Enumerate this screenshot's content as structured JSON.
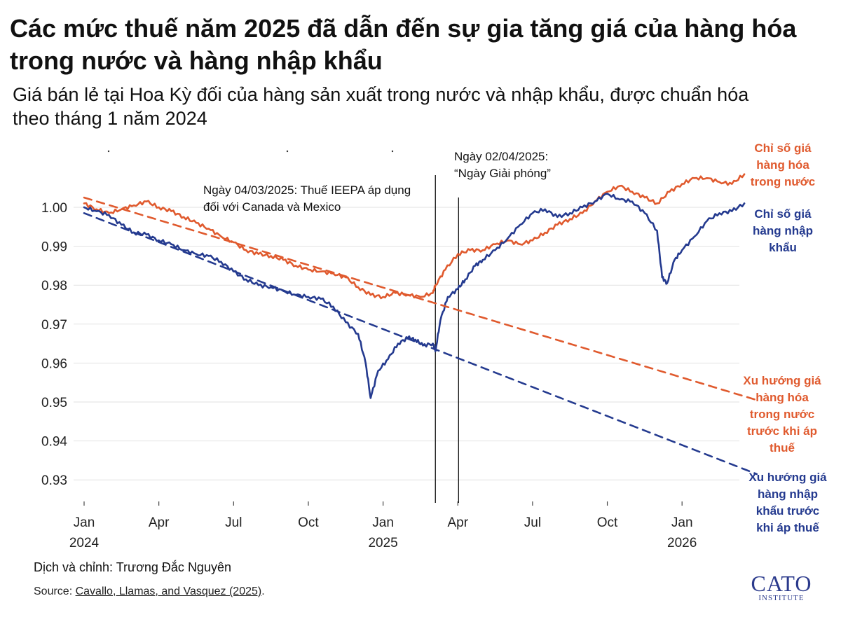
{
  "title": "Các mức thuế năm 2025 đã dẫn đến sự gia tăng giá của hàng hóa trong nước và hàng nhập khẩu",
  "subtitle": "Giá bán lẻ tại Hoa Kỳ đối của hàng sản xuất trong nước và nhập khẩu, được chuẩn hóa theo tháng 1 năm 2024",
  "credit": "Dịch và chỉnh: Trương Đắc Nguyên",
  "source_prefix": "Source: ",
  "source_link": "Cavallo, Llamas, and Vasquez (2025)",
  "source_suffix": ".",
  "logo": {
    "main": "CATO",
    "sub": "INSTITUTE"
  },
  "colors": {
    "domestic": "#e05a2e",
    "imported": "#243a8f"
  },
  "chart_data": {
    "type": "line",
    "title": "",
    "xlabel": "",
    "ylabel": "",
    "ylim": [
      0.925,
      1.005
    ],
    "xlim": [
      "2024-01",
      "2026-03"
    ],
    "grid": "horizontal",
    "y_ticks": [
      "1.00",
      "0.99",
      "0.98",
      "0.97",
      "0.96",
      "0.95",
      "0.94",
      "0.93"
    ],
    "x_ticks": [
      {
        "m": 0,
        "label": "Jan",
        "year": "2024"
      },
      {
        "m": 3,
        "label": "Apr",
        "year": ""
      },
      {
        "m": 6,
        "label": "Jul",
        "year": ""
      },
      {
        "m": 9,
        "label": "Oct",
        "year": ""
      },
      {
        "m": 12,
        "label": "Jan",
        "year": "2025"
      },
      {
        "m": 15,
        "label": "Apr",
        "year": ""
      },
      {
        "m": 18,
        "label": "Jul",
        "year": ""
      },
      {
        "m": 21,
        "label": "Oct",
        "year": ""
      },
      {
        "m": 24,
        "label": "Jan",
        "year": "2026"
      }
    ],
    "vlines": [
      {
        "date": "2025-03-04",
        "m": 14.1,
        "label": "Ngày 04/03/2025: Thuế IEEPA áp dụng đối với Canada và Mexico"
      },
      {
        "date": "2025-04-02",
        "m": 15.03,
        "label_line1": "Ngày 02/04/2025:",
        "label_line2": "“Ngày Giải phóng”"
      }
    ],
    "series": [
      {
        "name": "Chỉ số giá hàng hóa trong nước",
        "color": "#e05a2e",
        "style": "solid",
        "points": [
          [
            0,
            1.001
          ],
          [
            0.5,
            0.9995
          ],
          [
            1,
            0.9985
          ],
          [
            1.5,
            0.9995
          ],
          [
            2,
            1.0005
          ],
          [
            2.5,
            1.0015
          ],
          [
            3,
            1.0
          ],
          [
            3.5,
            0.999
          ],
          [
            4,
            0.9975
          ],
          [
            4.5,
            0.996
          ],
          [
            5,
            0.9945
          ],
          [
            5.5,
            0.9925
          ],
          [
            6,
            0.991
          ],
          [
            6.5,
            0.989
          ],
          [
            7,
            0.988
          ],
          [
            7.5,
            0.9875
          ],
          [
            8,
            0.9865
          ],
          [
            8.5,
            0.985
          ],
          [
            9,
            0.984
          ],
          [
            9.5,
            0.9835
          ],
          [
            10,
            0.983
          ],
          [
            10.5,
            0.982
          ],
          [
            11,
            0.9795
          ],
          [
            11.5,
            0.9775
          ],
          [
            12,
            0.977
          ],
          [
            12.5,
            0.978
          ],
          [
            13,
            0.9775
          ],
          [
            13.5,
            0.977
          ],
          [
            14,
            0.978
          ],
          [
            14.1,
            0.98
          ],
          [
            14.5,
            0.984
          ],
          [
            15,
            0.988
          ],
          [
            15.5,
            0.989
          ],
          [
            16,
            0.989
          ],
          [
            16.5,
            0.9905
          ],
          [
            17,
            0.9915
          ],
          [
            17.5,
            0.9905
          ],
          [
            18,
            0.9915
          ],
          [
            18.5,
            0.9935
          ],
          [
            19,
            0.9955
          ],
          [
            19.5,
            0.997
          ],
          [
            20,
            0.9985
          ],
          [
            20.5,
            1.0015
          ],
          [
            21,
            1.004
          ],
          [
            21.5,
            1.0055
          ],
          [
            22,
            1.004
          ],
          [
            22.5,
            1.0025
          ],
          [
            23,
            1.001
          ],
          [
            23.5,
            1.004
          ],
          [
            24,
            1.006
          ],
          [
            24.5,
            1.0075
          ],
          [
            25,
            1.0075
          ],
          [
            25.5,
            1.0065
          ],
          [
            26,
            1.006
          ],
          [
            26.5,
            1.0085
          ]
        ]
      },
      {
        "name": "Chỉ số giá hàng nhập khẩu",
        "color": "#243a8f",
        "style": "solid",
        "points": [
          [
            0,
            1.0
          ],
          [
            0.5,
            0.999
          ],
          [
            1,
            0.998
          ],
          [
            1.5,
            0.9955
          ],
          [
            2,
            0.9935
          ],
          [
            2.5,
            0.993
          ],
          [
            3,
            0.9915
          ],
          [
            3.5,
            0.9905
          ],
          [
            4,
            0.989
          ],
          [
            4.5,
            0.988
          ],
          [
            5,
            0.9875
          ],
          [
            5.5,
            0.986
          ],
          [
            6,
            0.9835
          ],
          [
            6.5,
            0.9815
          ],
          [
            7,
            0.98
          ],
          [
            7.5,
            0.9795
          ],
          [
            8,
            0.9785
          ],
          [
            8.5,
            0.9775
          ],
          [
            9,
            0.977
          ],
          [
            9.5,
            0.9765
          ],
          [
            10,
            0.9745
          ],
          [
            10.5,
            0.9705
          ],
          [
            11,
            0.9675
          ],
          [
            11.3,
            0.96
          ],
          [
            11.5,
            0.951
          ],
          [
            11.8,
            0.958
          ],
          [
            12.2,
            0.961
          ],
          [
            12.6,
            0.965
          ],
          [
            13,
            0.9665
          ],
          [
            13.3,
            0.966
          ],
          [
            13.6,
            0.9645
          ],
          [
            14,
            0.965
          ],
          [
            14.1,
            0.963
          ],
          [
            14.3,
            0.971
          ],
          [
            14.6,
            0.977
          ],
          [
            15,
            0.979
          ],
          [
            15.3,
            0.9815
          ],
          [
            15.7,
            0.985
          ],
          [
            16,
            0.9865
          ],
          [
            16.5,
            0.989
          ],
          [
            17,
            0.992
          ],
          [
            17.5,
            0.9955
          ],
          [
            18,
            0.9985
          ],
          [
            18.5,
            0.9995
          ],
          [
            19,
            0.9975
          ],
          [
            19.5,
            0.9985
          ],
          [
            20,
            1.0
          ],
          [
            20.5,
            1.0015
          ],
          [
            21,
            1.0035
          ],
          [
            21.5,
            1.002
          ],
          [
            22,
            1.0015
          ],
          [
            22.5,
            0.9985
          ],
          [
            23,
            0.994
          ],
          [
            23.2,
            0.982
          ],
          [
            23.4,
            0.9805
          ],
          [
            23.7,
            0.9865
          ],
          [
            24,
            0.989
          ],
          [
            24.5,
            0.9925
          ],
          [
            25,
            0.9965
          ],
          [
            25.5,
            0.9985
          ],
          [
            26,
            0.999
          ],
          [
            26.5,
            1.001
          ]
        ]
      },
      {
        "name": "Xu hướng giá hàng hóa trong nước trước khi áp thuế",
        "color": "#e05a2e",
        "style": "dashed",
        "points": [
          [
            0,
            1.0025
          ],
          [
            27,
            0.9505
          ]
        ]
      },
      {
        "name": "Xu hướng giá hàng nhập khẩu trước khi áp thuế",
        "color": "#243a8f",
        "style": "dashed",
        "points": [
          [
            0,
            0.9985
          ],
          [
            27,
            0.9315
          ]
        ]
      }
    ],
    "legend": "right",
    "labels": {
      "domestic_index": [
        "Chỉ số giá",
        "hàng hóa",
        "trong nước"
      ],
      "imported_index": [
        "Chỉ số giá",
        "hàng nhập",
        "khẩu"
      ],
      "domestic_trend": [
        "Xu hướng giá",
        "hàng hóa",
        "trong nước",
        "trước khi áp",
        "thuế"
      ],
      "imported_trend": [
        "Xu hướng giá",
        "hàng nhập",
        "khẩu trước",
        "khi áp thuế"
      ]
    }
  }
}
